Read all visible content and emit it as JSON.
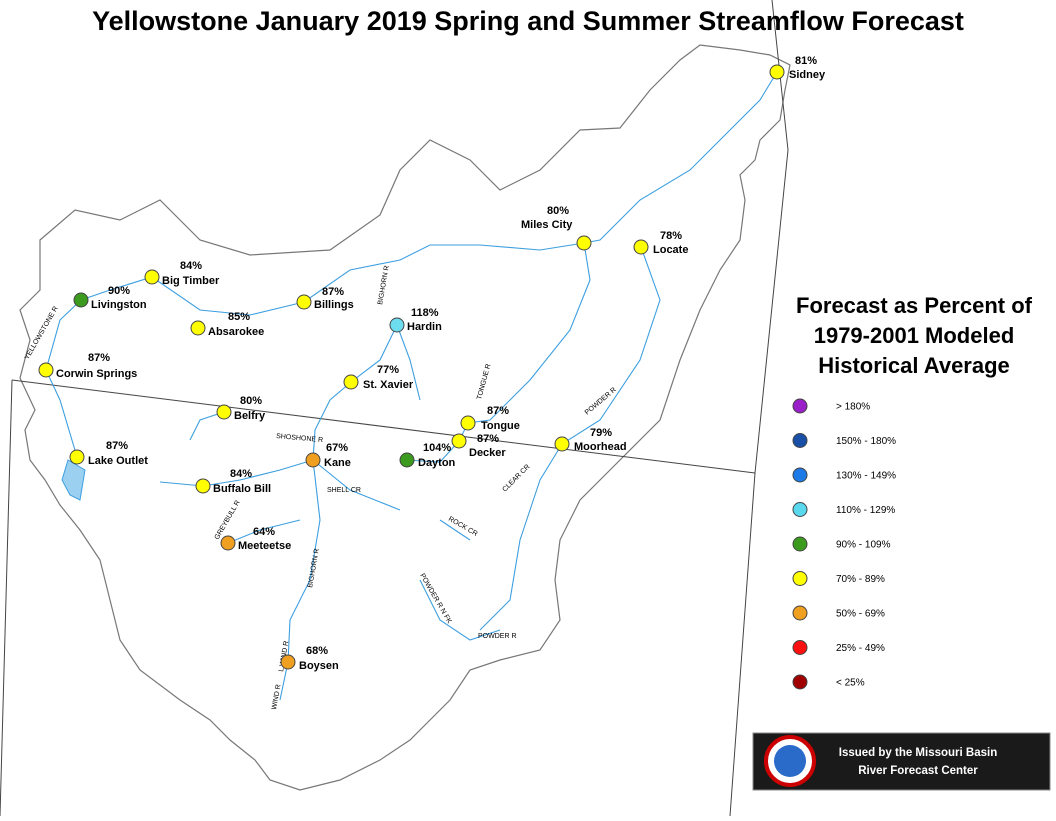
{
  "header": {
    "title": "Yellowstone January 2019 Spring and Summer Streamflow Forecast"
  },
  "stations": [
    {
      "name": "Sidney",
      "pct": "81%",
      "color": "#ffff00"
    },
    {
      "name": "Miles City",
      "pct": "80%",
      "color": "#ffff00"
    },
    {
      "name": "Locate",
      "pct": "78%",
      "color": "#ffff00"
    },
    {
      "name": "Big Timber",
      "pct": "84%",
      "color": "#ffff00"
    },
    {
      "name": "Livingston",
      "pct": "90%",
      "color": "#3c9a1f"
    },
    {
      "name": "Absarokee",
      "pct": "85%",
      "color": "#ffff00"
    },
    {
      "name": "Billings",
      "pct": "87%",
      "color": "#ffff00"
    },
    {
      "name": "Hardin",
      "pct": "118%",
      "color": "#6ddcee"
    },
    {
      "name": "Corwin Springs",
      "pct": "87%",
      "color": "#ffff00"
    },
    {
      "name": "St. Xavier",
      "pct": "77%",
      "color": "#ffff00"
    },
    {
      "name": "Belfry",
      "pct": "80%",
      "color": "#ffff00"
    },
    {
      "name": "Tongue",
      "pct": "87%",
      "color": "#ffff00"
    },
    {
      "name": "Decker",
      "pct": "87%",
      "color": "#ffff00"
    },
    {
      "name": "Dayton",
      "pct": "104%",
      "color": "#3c9a1f"
    },
    {
      "name": "Moorhead",
      "pct": "79%",
      "color": "#ffff00"
    },
    {
      "name": "Kane",
      "pct": "67%",
      "color": "#f0a020"
    },
    {
      "name": "Lake Outlet",
      "pct": "87%",
      "color": "#ffff00"
    },
    {
      "name": "Buffalo Bill",
      "pct": "84%",
      "color": "#ffff00"
    },
    {
      "name": "Meeteetse",
      "pct": "64%",
      "color": "#f0a020"
    },
    {
      "name": "Boysen",
      "pct": "68%",
      "color": "#f0a020"
    }
  ],
  "rivers": [
    "YELLOWSTONE R",
    "BIGHORN R",
    "TONGUE R",
    "POWDER R",
    "SHOSHONE R",
    "SHELL CR",
    "CLEAR CR",
    "ROCK CR",
    "GREYBULL R",
    "BIGHORN R",
    "POWDER R N FK",
    "POWDER R",
    "WIND R",
    "L WIND R"
  ],
  "legend": {
    "title": [
      "Forecast as Percent of",
      "1979-2001 Modeled",
      "Historical Average"
    ],
    "items": [
      {
        "label": "> 180%",
        "color": "#9b1fc9"
      },
      {
        "label": "150% - 180%",
        "color": "#1a4fa8"
      },
      {
        "label": "130% - 149%",
        "color": "#1e7ae6"
      },
      {
        "label": "110% - 129%",
        "color": "#5ad8ee"
      },
      {
        "label": "90% - 109%",
        "color": "#3c9a1f"
      },
      {
        "label": "70% - 89%",
        "color": "#ffff00"
      },
      {
        "label": "50% - 69%",
        "color": "#f0a020"
      },
      {
        "label": "25% - 49%",
        "color": "#ff1010"
      },
      {
        "label": "< 25%",
        "color": "#a00000"
      }
    ]
  },
  "footer": {
    "lines": [
      "Issued by the Missouri Basin",
      "River Forecast Center"
    ]
  }
}
